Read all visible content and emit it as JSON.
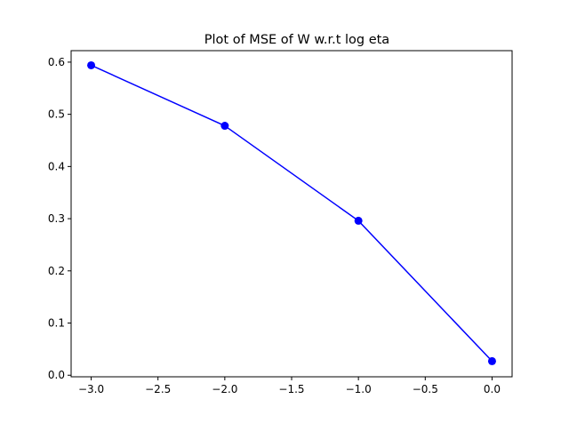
{
  "chart_data": {
    "type": "line",
    "title": "Plot of MSE of W w.r.t log eta",
    "xlabel": "",
    "ylabel": "",
    "xlim": [
      -3.15,
      0.15
    ],
    "ylim": [
      -0.003,
      0.622
    ],
    "xticks": [
      -3.0,
      -2.5,
      -2.0,
      -1.5,
      -1.0,
      -0.5,
      0.0
    ],
    "xtick_labels": [
      "−3.0",
      "−2.5",
      "−2.0",
      "−1.5",
      "−1.0",
      "−0.5",
      "0.0"
    ],
    "yticks": [
      0.0,
      0.1,
      0.2,
      0.3,
      0.4,
      0.5,
      0.6
    ],
    "ytick_labels": [
      "0.0",
      "0.1",
      "0.2",
      "0.3",
      "0.4",
      "0.5",
      "0.6"
    ],
    "grid": false,
    "series": [
      {
        "color": "#0000ff",
        "marker": "circle",
        "x": [
          -3.0,
          -2.0,
          -1.0,
          0.0
        ],
        "y": [
          0.594,
          0.478,
          0.296,
          0.027
        ]
      }
    ]
  }
}
